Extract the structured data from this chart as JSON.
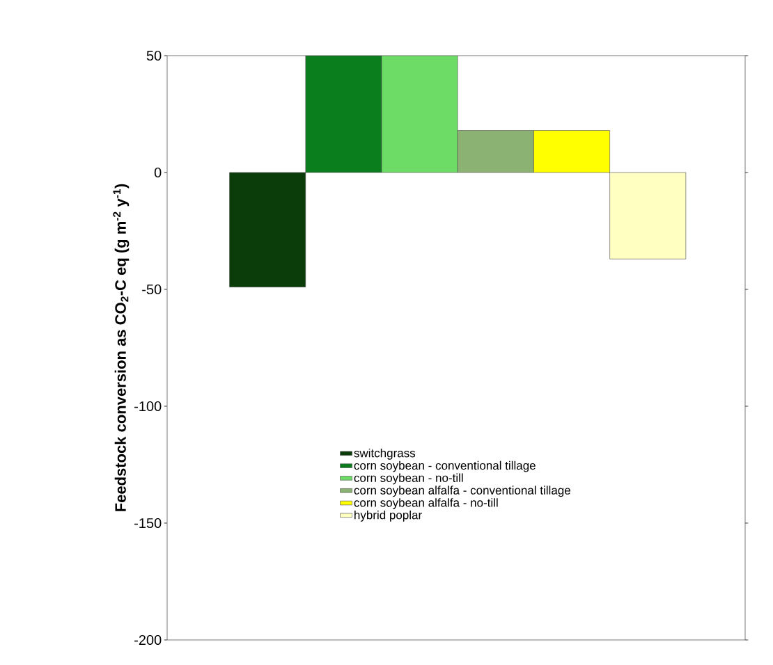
{
  "chart_data": {
    "type": "bar",
    "ylabel": "Feedstock conversion as CO$_{2}$-C eq (g m$^{-2}$ y$^{-1}$)",
    "categories": [
      null
    ],
    "series": [
      {
        "name": "switchgrass",
        "color": "#0b3d0b",
        "values": [
          -49
        ]
      },
      {
        "name": "corn soybean - conventional tillage",
        "color": "#0a7d1c",
        "values": [
          50
        ]
      },
      {
        "name": "corn soybean - no-till",
        "color": "#6ddc66",
        "values": [
          50
        ]
      },
      {
        "name": "corn soybean alfalfa - conventional tillage",
        "color": "#8cb273",
        "values": [
          18
        ]
      },
      {
        "name": "corn soybean alfalfa - no-till",
        "color": "#ffff00",
        "values": [
          18
        ]
      },
      {
        "name": "hybrid poplar",
        "color": "#ffffc2",
        "values": [
          -37
        ]
      }
    ],
    "ylim": [
      -200,
      50
    ],
    "yticks": [
      -200,
      -150,
      -100,
      -50,
      0,
      50
    ],
    "grid": false,
    "legend": "bottom"
  }
}
